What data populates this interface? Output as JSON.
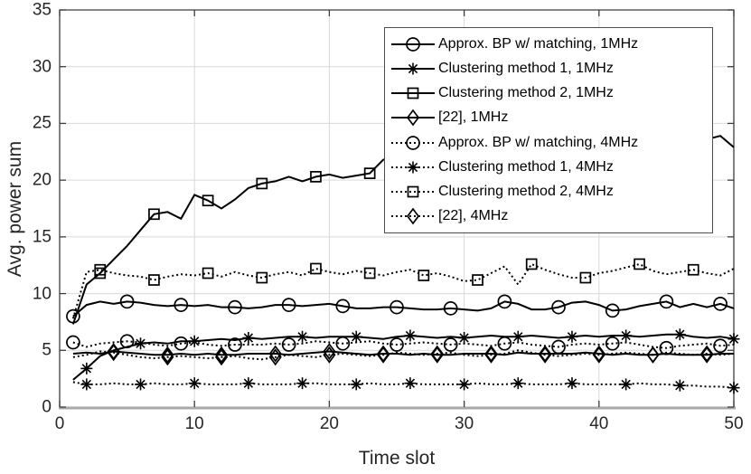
{
  "figure": {
    "background": "#ffffff"
  },
  "chart_data": {
    "type": "line",
    "title": "",
    "xlabel": "Time slot",
    "ylabel": "Avg. power sum",
    "xlim": [
      0,
      50
    ],
    "ylim": [
      0,
      35
    ],
    "xticks": [
      0,
      10,
      20,
      30,
      40,
      50
    ],
    "yticks": [
      0,
      5,
      10,
      15,
      20,
      25,
      30,
      35
    ],
    "grid": true,
    "legend_position": "top-right",
    "line_color": "#000000",
    "grid_color": "#d9d9d9",
    "axis_color": "#3d3d3d",
    "axis_bottom_color": "#a8a8a8",
    "tick_label_color": "#262626",
    "marker_step": 4,
    "x": [
      1,
      2,
      3,
      4,
      5,
      6,
      7,
      8,
      9,
      10,
      11,
      12,
      13,
      14,
      15,
      16,
      17,
      18,
      19,
      20,
      21,
      22,
      23,
      24,
      25,
      26,
      27,
      28,
      29,
      30,
      31,
      32,
      33,
      34,
      35,
      36,
      37,
      38,
      39,
      40,
      41,
      42,
      43,
      44,
      45,
      46,
      47,
      48,
      49,
      50
    ],
    "series": [
      {
        "name": "Approx. BP w/ matching, 1MHz",
        "line": "solid",
        "marker": "circle",
        "marker_start": 1,
        "values": [
          8.0,
          9.0,
          9.3,
          9.1,
          9.3,
          9.2,
          9.0,
          8.9,
          9.0,
          8.9,
          9.0,
          8.8,
          8.8,
          8.7,
          8.8,
          9.0,
          9.0,
          8.9,
          9.0,
          9.1,
          8.9,
          8.7,
          8.7,
          8.8,
          8.8,
          8.7,
          8.6,
          8.6,
          8.7,
          8.6,
          8.5,
          8.7,
          9.3,
          9.1,
          8.6,
          8.6,
          8.8,
          9.2,
          9.3,
          9.0,
          8.5,
          8.6,
          8.9,
          9.1,
          9.3,
          8.8,
          9.1,
          8.8,
          9.1,
          8.7
        ]
      },
      {
        "name": "Clustering method 1, 1MHz",
        "line": "solid",
        "marker": "asterisk",
        "marker_start": 2,
        "values": [
          2.4,
          3.4,
          4.5,
          5.0,
          5.3,
          5.6,
          5.7,
          5.6,
          5.8,
          5.8,
          5.9,
          6.0,
          5.9,
          6.1,
          6.0,
          6.1,
          6.2,
          6.2,
          6.1,
          6.2,
          6.2,
          6.2,
          6.1,
          6.0,
          6.2,
          6.3,
          6.2,
          6.1,
          6.2,
          6.1,
          6.2,
          6.3,
          6.2,
          6.2,
          6.3,
          6.2,
          6.1,
          6.2,
          6.3,
          6.2,
          6.3,
          6.3,
          6.2,
          6.3,
          6.4,
          6.4,
          6.2,
          6.1,
          6.2,
          6.0
        ]
      },
      {
        "name": "Clustering method 2, 1MHz",
        "line": "solid",
        "marker": "square",
        "marker_start": 3,
        "values": [
          7.3,
          10.8,
          11.8,
          13.0,
          14.2,
          15.6,
          17.0,
          17.2,
          16.6,
          18.7,
          18.2,
          17.5,
          18.3,
          19.3,
          19.7,
          19.9,
          20.3,
          19.9,
          20.3,
          20.5,
          20.2,
          20.4,
          20.6,
          21.8,
          22.0,
          22.2,
          22.4,
          22.3,
          22.5,
          22.6,
          22.4,
          22.7,
          22.9,
          22.8,
          23.0,
          23.1,
          22.9,
          23.2,
          23.3,
          23.1,
          23.4,
          23.2,
          23.5,
          23.4,
          23.6,
          23.5,
          23.7,
          23.6,
          23.9,
          22.9
        ]
      },
      {
        "name": "[22], 1MHz",
        "line": "solid",
        "marker": "diamond",
        "marker_start": 4,
        "values": [
          4.7,
          4.8,
          4.7,
          4.9,
          4.8,
          4.7,
          4.6,
          4.6,
          4.7,
          4.6,
          4.7,
          4.6,
          4.6,
          4.7,
          4.7,
          4.7,
          4.6,
          4.7,
          4.8,
          4.9,
          4.8,
          4.7,
          4.6,
          4.7,
          4.7,
          4.6,
          4.7,
          4.6,
          4.6,
          4.7,
          4.7,
          4.7,
          4.6,
          4.8,
          4.7,
          4.7,
          4.7,
          4.7,
          4.8,
          4.7,
          4.6,
          4.7,
          4.6,
          4.6,
          4.7,
          4.6,
          4.6,
          4.6,
          4.7,
          4.7
        ]
      },
      {
        "name": "Approx. BP w/ matching, 4MHz",
        "line": "dotted",
        "marker": "circle",
        "marker_start": 1,
        "values": [
          5.7,
          5.3,
          5.6,
          5.7,
          5.8,
          5.7,
          5.5,
          5.4,
          5.6,
          5.7,
          5.5,
          5.4,
          5.5,
          5.5,
          5.5,
          5.6,
          5.5,
          5.6,
          5.8,
          5.7,
          5.6,
          5.7,
          5.8,
          5.6,
          5.5,
          5.6,
          5.7,
          5.6,
          5.5,
          5.6,
          5.5,
          5.4,
          5.6,
          5.7,
          5.5,
          5.4,
          5.3,
          5.5,
          5.6,
          5.5,
          5.6,
          5.7,
          5.5,
          5.3,
          5.2,
          5.4,
          5.5,
          5.6,
          5.4,
          5.5
        ]
      },
      {
        "name": "Clustering method 1, 4MHz",
        "line": "dotted",
        "marker": "asterisk",
        "marker_start": 2,
        "values": [
          2.2,
          2.0,
          2.0,
          2.1,
          2.0,
          2.0,
          2.1,
          2.0,
          2.0,
          2.1,
          2.0,
          2.0,
          2.0,
          2.1,
          2.0,
          2.0,
          2.0,
          2.1,
          2.1,
          2.0,
          2.0,
          2.0,
          2.1,
          2.0,
          2.0,
          2.1,
          2.0,
          2.0,
          2.0,
          2.0,
          2.1,
          2.0,
          2.0,
          2.1,
          2.0,
          2.0,
          2.0,
          2.1,
          2.0,
          2.0,
          2.0,
          2.0,
          2.1,
          2.0,
          2.0,
          1.9,
          1.9,
          1.8,
          1.8,
          1.7
        ]
      },
      {
        "name": "Clustering method 2, 4MHz",
        "line": "dotted",
        "marker": "square",
        "marker_start": 3,
        "values": [
          7.8,
          11.9,
          12.1,
          11.8,
          11.6,
          11.5,
          11.2,
          11.5,
          11.7,
          11.6,
          11.8,
          11.5,
          11.9,
          11.6,
          11.4,
          11.7,
          11.9,
          11.6,
          12.2,
          11.9,
          11.7,
          12.0,
          11.8,
          11.6,
          11.9,
          12.1,
          11.6,
          11.8,
          11.5,
          11.1,
          11.2,
          11.8,
          12.4,
          10.8,
          12.6,
          12.1,
          11.7,
          11.4,
          11.4,
          11.8,
          12.0,
          12.3,
          12.6,
          12.0,
          11.7,
          11.9,
          12.1,
          11.8,
          11.6,
          12.2
        ]
      },
      {
        "name": "[22], 4MHz",
        "line": "dotted",
        "marker": "diamond",
        "marker_start": 4,
        "values": [
          4.4,
          4.6,
          4.9,
          4.8,
          4.6,
          4.4,
          4.3,
          4.4,
          4.5,
          4.4,
          4.3,
          4.4,
          4.5,
          4.3,
          4.2,
          4.4,
          4.6,
          4.5,
          4.4,
          4.6,
          4.7,
          4.6,
          4.5,
          4.6,
          4.8,
          4.7,
          4.6,
          4.7,
          4.8,
          4.6,
          4.5,
          4.6,
          4.7,
          5.0,
          4.8,
          4.6,
          4.5,
          4.6,
          4.7,
          4.6,
          4.7,
          4.8,
          4.7,
          4.6,
          4.8,
          4.7,
          4.6,
          4.7,
          4.6,
          4.7
        ]
      }
    ]
  }
}
